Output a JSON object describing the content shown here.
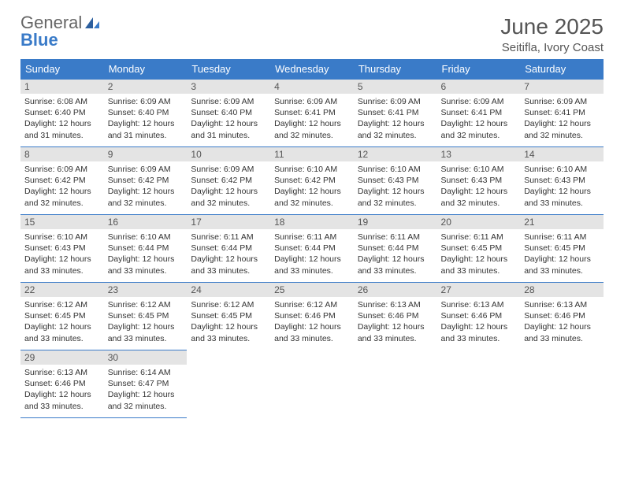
{
  "logo": {
    "word1": "General",
    "word2": "Blue"
  },
  "title": "June 2025",
  "subtitle": "Seitifla, Ivory Coast",
  "header_bg": "#3a7bc8",
  "daynum_bg": "#e4e4e4",
  "border_color": "#3a7bc8",
  "days_of_week": [
    "Sunday",
    "Monday",
    "Tuesday",
    "Wednesday",
    "Thursday",
    "Friday",
    "Saturday"
  ],
  "weeks": [
    [
      {
        "n": "1",
        "sunrise": "Sunrise: 6:08 AM",
        "sunset": "Sunset: 6:40 PM",
        "daylight": "Daylight: 12 hours and 31 minutes."
      },
      {
        "n": "2",
        "sunrise": "Sunrise: 6:09 AM",
        "sunset": "Sunset: 6:40 PM",
        "daylight": "Daylight: 12 hours and 31 minutes."
      },
      {
        "n": "3",
        "sunrise": "Sunrise: 6:09 AM",
        "sunset": "Sunset: 6:40 PM",
        "daylight": "Daylight: 12 hours and 31 minutes."
      },
      {
        "n": "4",
        "sunrise": "Sunrise: 6:09 AM",
        "sunset": "Sunset: 6:41 PM",
        "daylight": "Daylight: 12 hours and 32 minutes."
      },
      {
        "n": "5",
        "sunrise": "Sunrise: 6:09 AM",
        "sunset": "Sunset: 6:41 PM",
        "daylight": "Daylight: 12 hours and 32 minutes."
      },
      {
        "n": "6",
        "sunrise": "Sunrise: 6:09 AM",
        "sunset": "Sunset: 6:41 PM",
        "daylight": "Daylight: 12 hours and 32 minutes."
      },
      {
        "n": "7",
        "sunrise": "Sunrise: 6:09 AM",
        "sunset": "Sunset: 6:41 PM",
        "daylight": "Daylight: 12 hours and 32 minutes."
      }
    ],
    [
      {
        "n": "8",
        "sunrise": "Sunrise: 6:09 AM",
        "sunset": "Sunset: 6:42 PM",
        "daylight": "Daylight: 12 hours and 32 minutes."
      },
      {
        "n": "9",
        "sunrise": "Sunrise: 6:09 AM",
        "sunset": "Sunset: 6:42 PM",
        "daylight": "Daylight: 12 hours and 32 minutes."
      },
      {
        "n": "10",
        "sunrise": "Sunrise: 6:09 AM",
        "sunset": "Sunset: 6:42 PM",
        "daylight": "Daylight: 12 hours and 32 minutes."
      },
      {
        "n": "11",
        "sunrise": "Sunrise: 6:10 AM",
        "sunset": "Sunset: 6:42 PM",
        "daylight": "Daylight: 12 hours and 32 minutes."
      },
      {
        "n": "12",
        "sunrise": "Sunrise: 6:10 AM",
        "sunset": "Sunset: 6:43 PM",
        "daylight": "Daylight: 12 hours and 32 minutes."
      },
      {
        "n": "13",
        "sunrise": "Sunrise: 6:10 AM",
        "sunset": "Sunset: 6:43 PM",
        "daylight": "Daylight: 12 hours and 32 minutes."
      },
      {
        "n": "14",
        "sunrise": "Sunrise: 6:10 AM",
        "sunset": "Sunset: 6:43 PM",
        "daylight": "Daylight: 12 hours and 33 minutes."
      }
    ],
    [
      {
        "n": "15",
        "sunrise": "Sunrise: 6:10 AM",
        "sunset": "Sunset: 6:43 PM",
        "daylight": "Daylight: 12 hours and 33 minutes."
      },
      {
        "n": "16",
        "sunrise": "Sunrise: 6:10 AM",
        "sunset": "Sunset: 6:44 PM",
        "daylight": "Daylight: 12 hours and 33 minutes."
      },
      {
        "n": "17",
        "sunrise": "Sunrise: 6:11 AM",
        "sunset": "Sunset: 6:44 PM",
        "daylight": "Daylight: 12 hours and 33 minutes."
      },
      {
        "n": "18",
        "sunrise": "Sunrise: 6:11 AM",
        "sunset": "Sunset: 6:44 PM",
        "daylight": "Daylight: 12 hours and 33 minutes."
      },
      {
        "n": "19",
        "sunrise": "Sunrise: 6:11 AM",
        "sunset": "Sunset: 6:44 PM",
        "daylight": "Daylight: 12 hours and 33 minutes."
      },
      {
        "n": "20",
        "sunrise": "Sunrise: 6:11 AM",
        "sunset": "Sunset: 6:45 PM",
        "daylight": "Daylight: 12 hours and 33 minutes."
      },
      {
        "n": "21",
        "sunrise": "Sunrise: 6:11 AM",
        "sunset": "Sunset: 6:45 PM",
        "daylight": "Daylight: 12 hours and 33 minutes."
      }
    ],
    [
      {
        "n": "22",
        "sunrise": "Sunrise: 6:12 AM",
        "sunset": "Sunset: 6:45 PM",
        "daylight": "Daylight: 12 hours and 33 minutes."
      },
      {
        "n": "23",
        "sunrise": "Sunrise: 6:12 AM",
        "sunset": "Sunset: 6:45 PM",
        "daylight": "Daylight: 12 hours and 33 minutes."
      },
      {
        "n": "24",
        "sunrise": "Sunrise: 6:12 AM",
        "sunset": "Sunset: 6:45 PM",
        "daylight": "Daylight: 12 hours and 33 minutes."
      },
      {
        "n": "25",
        "sunrise": "Sunrise: 6:12 AM",
        "sunset": "Sunset: 6:46 PM",
        "daylight": "Daylight: 12 hours and 33 minutes."
      },
      {
        "n": "26",
        "sunrise": "Sunrise: 6:13 AM",
        "sunset": "Sunset: 6:46 PM",
        "daylight": "Daylight: 12 hours and 33 minutes."
      },
      {
        "n": "27",
        "sunrise": "Sunrise: 6:13 AM",
        "sunset": "Sunset: 6:46 PM",
        "daylight": "Daylight: 12 hours and 33 minutes."
      },
      {
        "n": "28",
        "sunrise": "Sunrise: 6:13 AM",
        "sunset": "Sunset: 6:46 PM",
        "daylight": "Daylight: 12 hours and 33 minutes."
      }
    ],
    [
      {
        "n": "29",
        "sunrise": "Sunrise: 6:13 AM",
        "sunset": "Sunset: 6:46 PM",
        "daylight": "Daylight: 12 hours and 33 minutes."
      },
      {
        "n": "30",
        "sunrise": "Sunrise: 6:14 AM",
        "sunset": "Sunset: 6:47 PM",
        "daylight": "Daylight: 12 hours and 32 minutes."
      },
      null,
      null,
      null,
      null,
      null
    ]
  ]
}
